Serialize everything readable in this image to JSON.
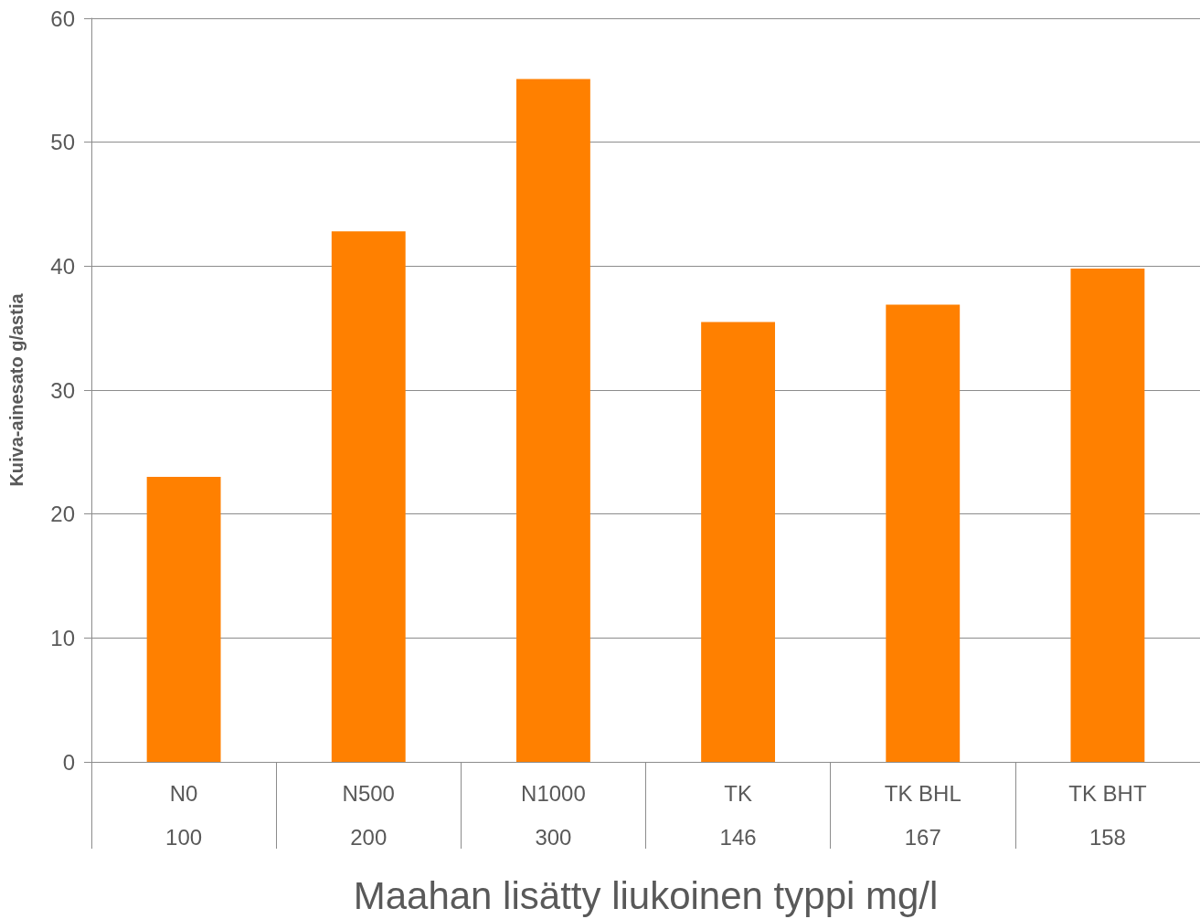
{
  "chart_data": {
    "type": "bar",
    "categories": [
      "N0\n100",
      "N500\n200",
      "N1000\n300",
      "TK\n146",
      "TK BHL\n167",
      "TK BHT\n158"
    ],
    "values": [
      23.0,
      42.8,
      55.1,
      35.5,
      36.9,
      39.8
    ],
    "color": "#ff8000",
    "xlabel": "Maahan lisätty liukoinen typpi mg/l",
    "ylabel": "Kuiva-ainesato g/astia",
    "ylim": [
      0,
      60
    ],
    "yticks": [
      0,
      10,
      20,
      30,
      40,
      50,
      60
    ],
    "grid": "y"
  }
}
